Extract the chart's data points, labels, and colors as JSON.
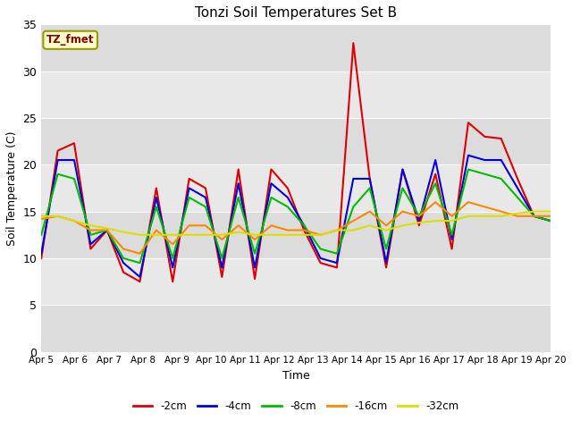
{
  "title": "Tonzi Soil Temperatures Set B",
  "xlabel": "Time",
  "ylabel": "Soil Temperature (C)",
  "annotation": "TZ_fmet",
  "ylim": [
    0,
    35
  ],
  "yticks": [
    0,
    5,
    10,
    15,
    20,
    25,
    30,
    35
  ],
  "x_labels": [
    "Apr 5",
    "Apr 6",
    "Apr 7",
    "Apr 8",
    "Apr 9",
    "Apr 10",
    "Apr 11",
    "Apr 12",
    "Apr 13",
    "Apr 14",
    "Apr 15",
    "Apr 16",
    "Apr 17",
    "Apr 18",
    "Apr 19",
    "Apr 20"
  ],
  "series": {
    "-2cm": {
      "color": "#dd0000",
      "values": [
        10.0,
        21.5,
        22.3,
        11.0,
        13.0,
        8.5,
        7.5,
        17.5,
        7.5,
        18.5,
        17.5,
        8.0,
        19.5,
        7.8,
        19.5,
        17.5,
        13.0,
        9.5,
        9.0,
        33.0,
        18.5,
        9.0,
        19.5,
        13.5,
        19.0,
        11.0,
        24.5,
        23.0,
        22.8,
        18.5,
        14.5,
        14.0
      ]
    },
    "-4cm": {
      "color": "#0000dd",
      "values": [
        10.5,
        20.5,
        20.5,
        11.5,
        13.0,
        9.5,
        8.0,
        16.5,
        9.0,
        17.5,
        16.5,
        9.0,
        18.0,
        9.0,
        18.0,
        16.5,
        13.5,
        10.0,
        9.5,
        18.5,
        18.5,
        9.5,
        19.5,
        14.0,
        20.5,
        12.0,
        21.0,
        20.5,
        20.5,
        17.5,
        14.5,
        14.0
      ]
    },
    "-8cm": {
      "color": "#00bb00",
      "values": [
        12.5,
        19.0,
        18.5,
        12.5,
        13.0,
        10.0,
        9.5,
        15.5,
        10.0,
        16.5,
        15.5,
        10.0,
        16.5,
        10.5,
        16.5,
        15.5,
        13.5,
        11.0,
        10.5,
        15.5,
        17.5,
        11.0,
        17.5,
        14.5,
        18.0,
        12.5,
        19.5,
        19.0,
        18.5,
        16.5,
        14.5,
        14.0
      ]
    },
    "-16cm": {
      "color": "#ff8800",
      "values": [
        14.2,
        14.5,
        14.0,
        13.0,
        13.0,
        11.0,
        10.5,
        13.0,
        11.5,
        13.5,
        13.5,
        12.0,
        13.5,
        12.0,
        13.5,
        13.0,
        13.0,
        12.5,
        13.0,
        14.0,
        15.0,
        13.5,
        15.0,
        14.5,
        16.0,
        14.5,
        16.0,
        15.5,
        15.0,
        14.5,
        14.5,
        14.5
      ]
    },
    "-32cm": {
      "color": "#dddd00",
      "values": [
        14.5,
        14.5,
        14.0,
        13.5,
        13.2,
        12.8,
        12.5,
        12.5,
        12.5,
        12.5,
        12.5,
        12.5,
        12.8,
        12.5,
        12.5,
        12.5,
        12.5,
        12.5,
        13.0,
        13.0,
        13.5,
        13.0,
        13.5,
        13.8,
        14.0,
        14.0,
        14.5,
        14.5,
        14.5,
        14.8,
        15.0,
        15.0
      ]
    }
  },
  "bg_color": "#ffffff",
  "plot_bg_color": "#e8e8e8",
  "grid_color": "#ffffff",
  "band_colors": [
    "#e0e0e0",
    "#d0d0d0"
  ],
  "legend_entries": [
    "-2cm",
    "-4cm",
    "-8cm",
    "-16cm",
    "-32cm"
  ],
  "legend_colors": [
    "#dd0000",
    "#0000dd",
    "#00bb00",
    "#ff8800",
    "#dddd00"
  ]
}
